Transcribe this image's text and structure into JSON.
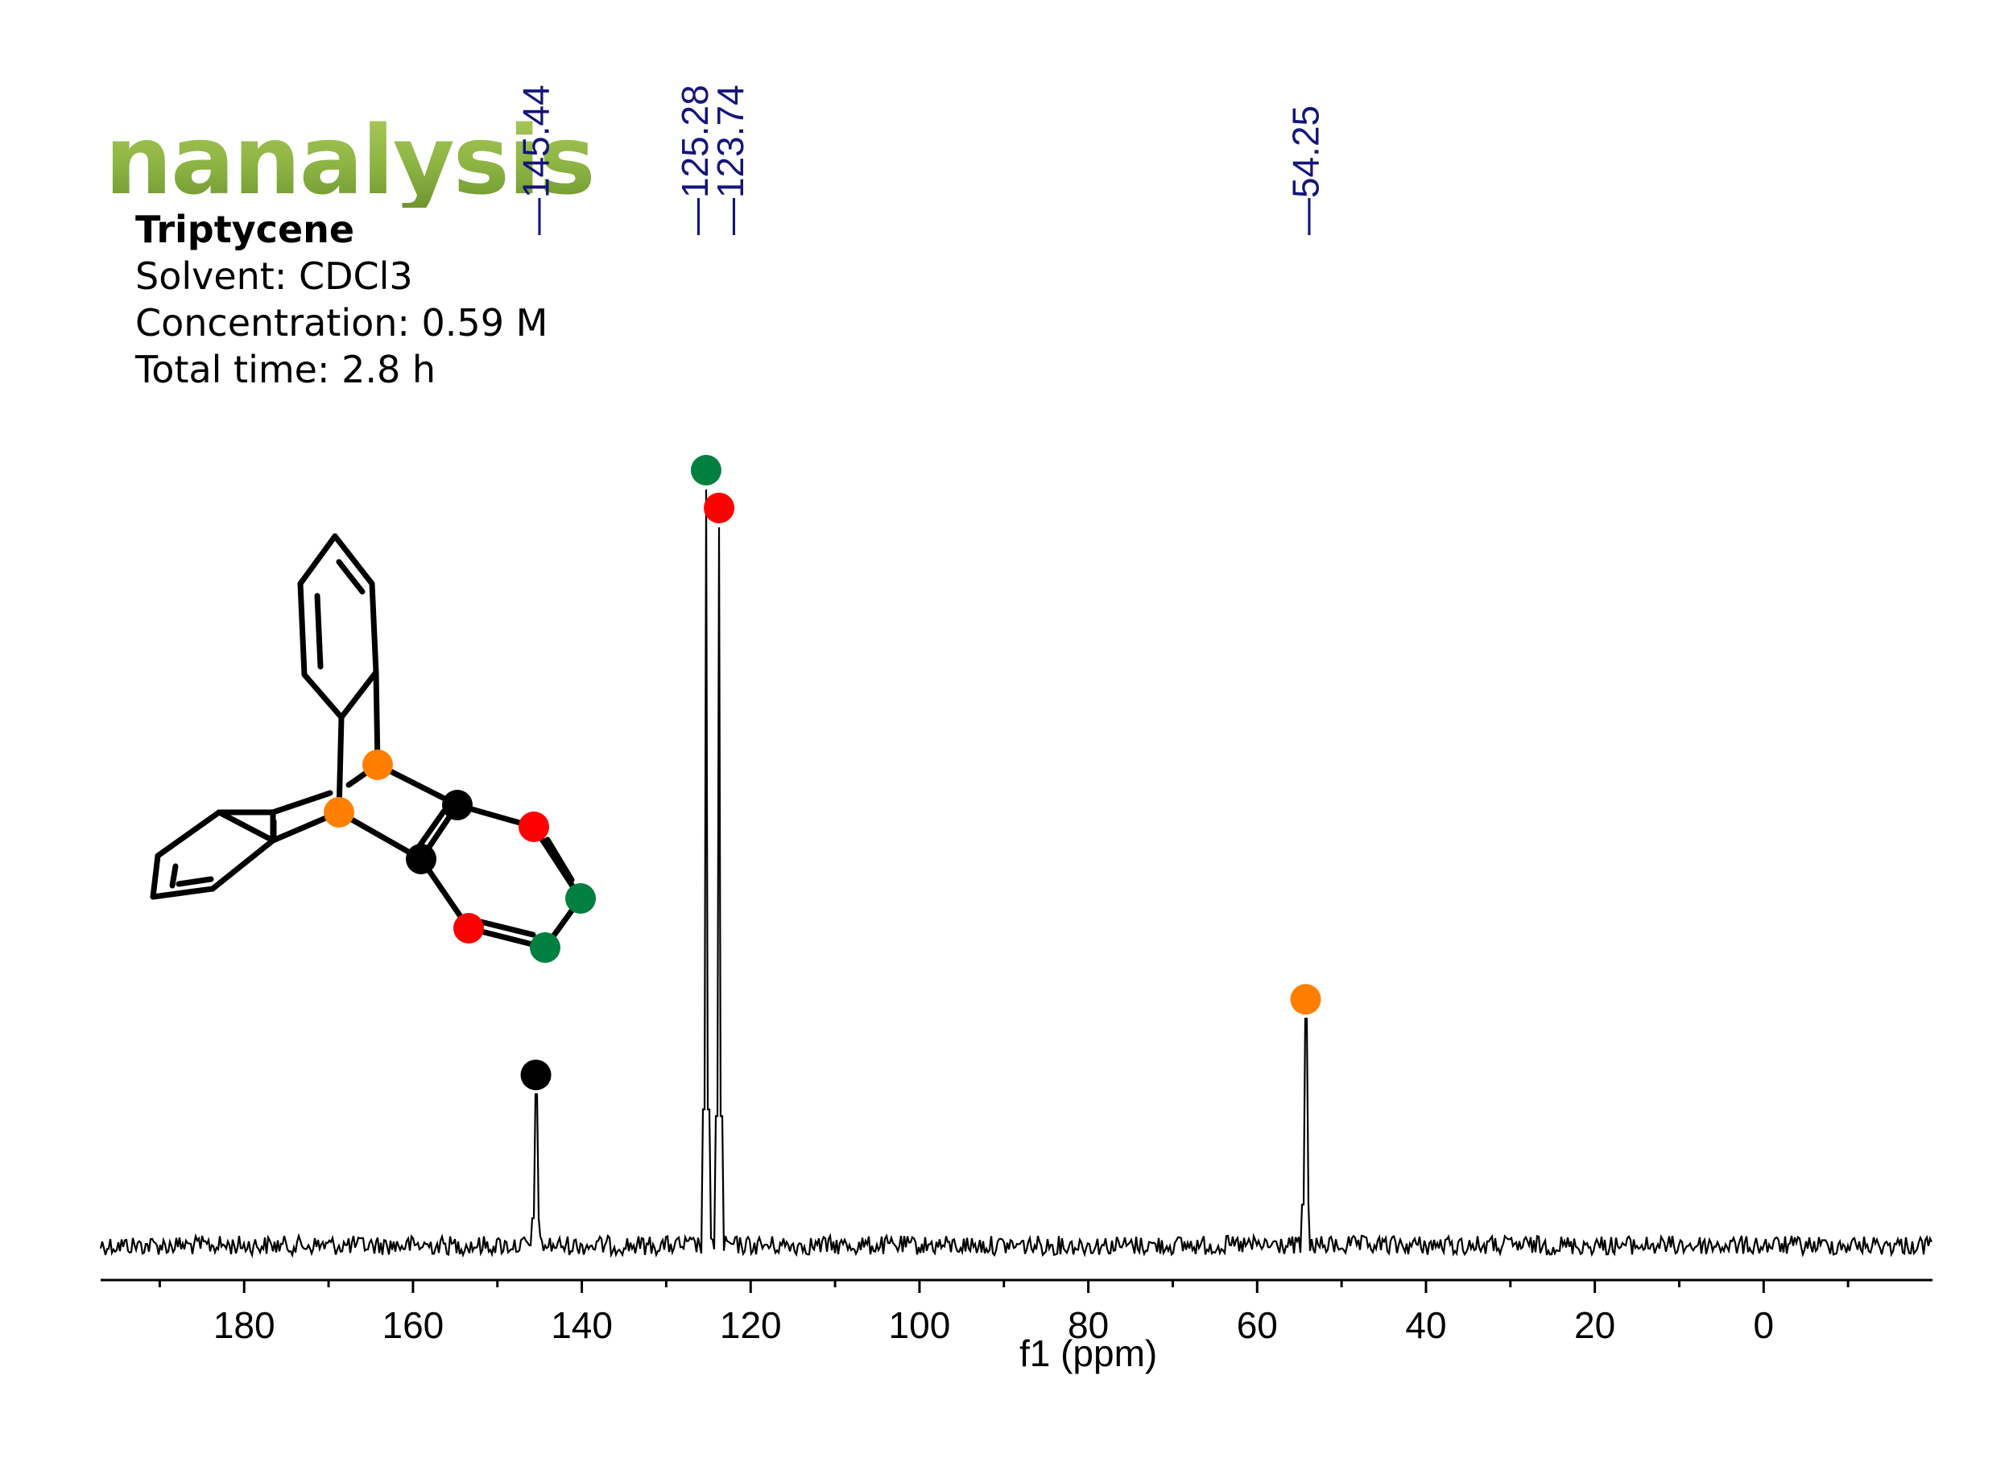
{
  "brand": {
    "logo_text": "nanalysis",
    "color": "#8cb043"
  },
  "sample": {
    "title": "Triptycene",
    "solvent": "Solvent: CDCl3",
    "concentration": "Concentration: 0.59 M",
    "total_time": "Total time: 2.8 h"
  },
  "chart_data": {
    "type": "line",
    "xlabel": "f1 (ppm)",
    "xlim": [
      197,
      -20
    ],
    "x_ticks": [
      180,
      160,
      140,
      120,
      100,
      80,
      60,
      40,
      20,
      0
    ],
    "x_tick_labels": [
      "180",
      "160",
      "140",
      "120",
      "100",
      "80",
      "60",
      "40",
      "20",
      "0"
    ],
    "peaks": [
      {
        "ppm": 145.44,
        "label": "145.44",
        "relative_height": 0.2,
        "marker_color": "#000000"
      },
      {
        "ppm": 125.28,
        "label": "125.28",
        "relative_height": 1.0,
        "marker_color": "#008040"
      },
      {
        "ppm": 123.74,
        "label": "123.74",
        "relative_height": 0.95,
        "marker_color": "#ff0000"
      },
      {
        "ppm": 54.25,
        "label": "54.25",
        "relative_height": 0.3,
        "marker_color": "#ff8000"
      }
    ],
    "baseline_noise": true
  },
  "structure": {
    "atom_colors": {
      "black": "#000000",
      "orange": "#ff8000",
      "red": "#ff0000",
      "green": "#008040"
    }
  }
}
